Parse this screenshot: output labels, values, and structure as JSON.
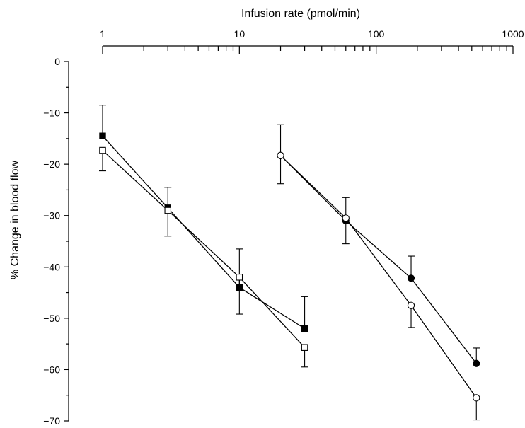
{
  "chart_data": {
    "type": "line",
    "xlabel": "Infusion rate (pmol/min)",
    "ylabel": "% Change in blood flow",
    "xscale": "log",
    "xlim": [
      1,
      1000
    ],
    "ylim": [
      -70,
      0
    ],
    "x_ticks": [
      1,
      10,
      100,
      1000
    ],
    "x_tick_labels": [
      "1",
      "10",
      "100",
      "1000"
    ],
    "y_ticks": [
      0,
      -10,
      -20,
      -30,
      -40,
      -50,
      -60,
      -70
    ],
    "y_tick_labels": [
      "0",
      "−10",
      "−20",
      "−30",
      "−40",
      "−50",
      "−60",
      "−70"
    ],
    "x_axis_position": "top",
    "grid": false,
    "legend": "none",
    "series": [
      {
        "marker": "filled-square",
        "points": [
          {
            "x": 1,
            "y": -14.5,
            "err_up": 6,
            "err_down": 0
          },
          {
            "x": 3,
            "y": -28.5,
            "err_up": 4,
            "err_down": 0
          },
          {
            "x": 10,
            "y": -44,
            "err_up": 7.5,
            "err_down": 0
          },
          {
            "x": 30,
            "y": -52,
            "err_up": 6.2,
            "err_down": 0
          }
        ]
      },
      {
        "marker": "open-square",
        "points": [
          {
            "x": 1,
            "y": -17.3,
            "err_up": 0,
            "err_down": 4
          },
          {
            "x": 3,
            "y": -29,
            "err_up": 0,
            "err_down": 5
          },
          {
            "x": 10,
            "y": -42,
            "err_up": 0,
            "err_down": 7.2
          },
          {
            "x": 30,
            "y": -55.7,
            "err_up": 0,
            "err_down": 3.8
          }
        ]
      },
      {
        "marker": "filled-circle",
        "points": [
          {
            "x": 20,
            "y": -18.3,
            "err_up": 0,
            "err_down": 0
          },
          {
            "x": 60,
            "y": -31,
            "err_up": 0,
            "err_down": 0
          },
          {
            "x": 180,
            "y": -42.2,
            "err_up": 4.3,
            "err_down": 0
          },
          {
            "x": 540,
            "y": -58.8,
            "err_up": 3,
            "err_down": 0
          }
        ]
      },
      {
        "marker": "open-circle",
        "points": [
          {
            "x": 20,
            "y": -18.3,
            "err_up": 6,
            "err_down": 5.5
          },
          {
            "x": 60,
            "y": -30.5,
            "err_up": 4,
            "err_down": 5
          },
          {
            "x": 180,
            "y": -47.5,
            "err_up": 0,
            "err_down": 4.3
          },
          {
            "x": 540,
            "y": -65.5,
            "err_up": 0,
            "err_down": 4.3
          }
        ]
      }
    ]
  }
}
